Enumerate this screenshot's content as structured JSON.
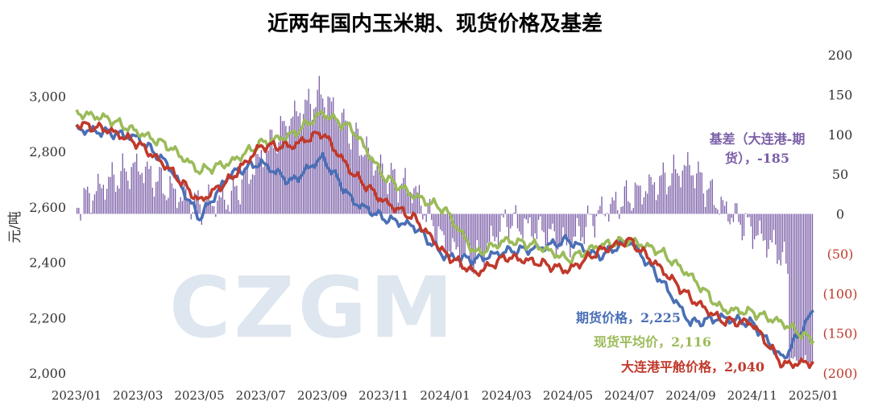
{
  "chart_data": {
    "type": "line",
    "title": "近两年国内玉米期、现货价格及基差",
    "ylabel": "元/吨",
    "ylim": [
      2000,
      3150
    ],
    "y2lim": [
      -200,
      200
    ],
    "yticks": [
      "2,000",
      "2,200",
      "2,400",
      "2,600",
      "2,800",
      "3,000"
    ],
    "y2ticks": [
      "(200)",
      "(150)",
      "(100)",
      "(50)",
      "0",
      "50",
      "100",
      "150",
      "200"
    ],
    "xlabels": [
      "2023/01",
      "2023/03",
      "2023/05",
      "2023/07",
      "2023/09",
      "2023/11",
      "2024/01",
      "2024/03",
      "2024/05",
      "2024/07",
      "2024/09",
      "2024/11",
      "2025/01"
    ],
    "watermark": "CZGM",
    "x": [
      "2023/01",
      "2023/02",
      "2023/03",
      "2023/04",
      "2023/05",
      "2023/06",
      "2023/07",
      "2023/08",
      "2023/09",
      "2023/10",
      "2023/11",
      "2023/12",
      "2024/01",
      "2024/02",
      "2024/03",
      "2024/04",
      "2024/05",
      "2024/06",
      "2024/07",
      "2024/08",
      "2024/09",
      "2024/10",
      "2024/11",
      "2024/12",
      "2025/01"
    ],
    "series": [
      {
        "name": "期货价格",
        "axis": "left",
        "color": "#4a6fb5",
        "last_label": "期货价格，2,225",
        "values": [
          2880,
          2870,
          2850,
          2750,
          2560,
          2720,
          2760,
          2690,
          2780,
          2620,
          2560,
          2530,
          2420,
          2410,
          2440,
          2450,
          2480,
          2420,
          2480,
          2340,
          2180,
          2200,
          2180,
          2050,
          2225
        ]
      },
      {
        "name": "现货平均价",
        "axis": "left",
        "color": "#9bbb59",
        "last_label": "现货平均价，2,116",
        "values": [
          2940,
          2920,
          2870,
          2820,
          2730,
          2760,
          2830,
          2860,
          2940,
          2880,
          2710,
          2640,
          2590,
          2430,
          2480,
          2460,
          2410,
          2460,
          2480,
          2440,
          2350,
          2230,
          2220,
          2180,
          2116
        ]
      },
      {
        "name": "大连港平舱价格",
        "axis": "left",
        "color": "#c0392b",
        "last_label": "大连港平舱价格，2,040",
        "values": [
          2900,
          2880,
          2830,
          2740,
          2620,
          2700,
          2820,
          2820,
          2870,
          2720,
          2620,
          2560,
          2430,
          2360,
          2420,
          2400,
          2370,
          2440,
          2480,
          2380,
          2270,
          2190,
          2180,
          2030,
          2040
        ]
      },
      {
        "name": "基差（大连港-期货）",
        "axis": "right",
        "color": "#7b5ea7",
        "last_label": "基差（大连港-期货），-185",
        "values": [
          10,
          40,
          60,
          30,
          10,
          20,
          70,
          120,
          150,
          100,
          50,
          30,
          -40,
          -60,
          -10,
          -20,
          -40,
          0,
          20,
          40,
          60,
          10,
          -20,
          -50,
          -185
        ]
      }
    ]
  }
}
